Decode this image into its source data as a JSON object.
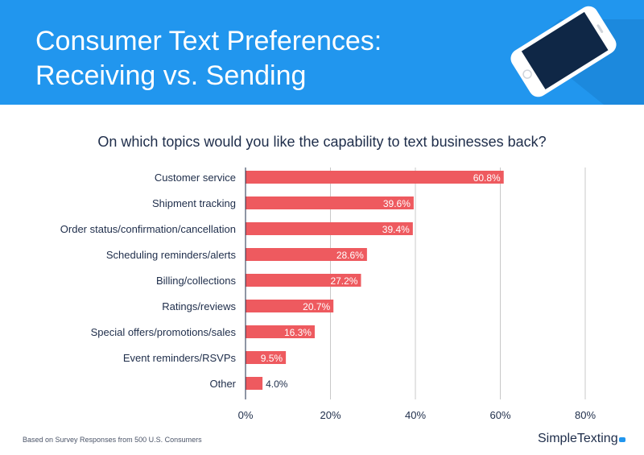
{
  "header": {
    "title_line1": "Consumer Text Preferences:",
    "title_line2": "Receiving vs. Sending",
    "icon": "smartphone-icon",
    "bg_color": "#2196ee"
  },
  "footer": {
    "note": "Based on Survey Responses from 500 U.S. Consumers",
    "brand": "SimpleTexting",
    "brand_icon": "speech-bubble-icon"
  },
  "chart_data": {
    "type": "bar",
    "orientation": "horizontal",
    "title": "On which topics would you like the capability to text businesses back?",
    "categories": [
      "Customer service",
      "Shipment tracking",
      "Order status/confirmation/cancellation",
      "Scheduling reminders/alerts",
      "Billing/collections",
      "Ratings/reviews",
      "Special offers/promotions/sales",
      "Event reminders/RSVPs",
      "Other"
    ],
    "values": [
      60.8,
      39.6,
      39.4,
      28.6,
      27.2,
      20.7,
      16.3,
      9.5,
      4.0
    ],
    "value_labels": [
      "60.8%",
      "39.6%",
      "39.4%",
      "28.6%",
      "27.2%",
      "20.7%",
      "16.3%",
      "9.5%",
      "4.0%"
    ],
    "xlim": [
      0,
      80
    ],
    "xticks": [
      0,
      20,
      40,
      60,
      80
    ],
    "xtick_labels": [
      "0%",
      "20%",
      "40%",
      "60%",
      "80%"
    ],
    "grid": true,
    "bar_color": "#ee5a5f",
    "grid_color": "#c8c8c8"
  }
}
